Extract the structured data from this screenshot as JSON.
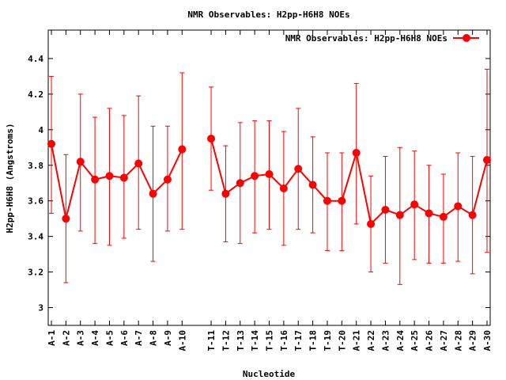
{
  "chart_data": {
    "type": "line",
    "title": "NMR Observables: H2pp-H6H8 NOEs",
    "xlabel": "Nucleotide",
    "ylabel": "H2pp-H6H8 (Angstroms)",
    "ylim": [
      2.9,
      4.56
    ],
    "yticks": [
      "3",
      "3.2",
      "3.4",
      "3.6",
      "3.8",
      "4",
      "4.2",
      "4.4"
    ],
    "ytick_values": [
      3.0,
      3.2,
      3.4,
      3.6,
      3.8,
      4.0,
      4.2,
      4.4
    ],
    "grid": false,
    "legend_position": "top-right",
    "color": "#ff0000",
    "categories": [
      "A-1",
      "A-2",
      "A-3",
      "A-4",
      "A-5",
      "A-6",
      "A-7",
      "A-8",
      "A-9",
      "A-10",
      "",
      "T-11",
      "T-12",
      "T-13",
      "T-14",
      "T-15",
      "T-16",
      "T-17",
      "T-18",
      "T-19",
      "T-20",
      "A-21",
      "A-22",
      "A-23",
      "A-24",
      "A-25",
      "A-26",
      "A-27",
      "A-28",
      "A-29",
      "A-30"
    ],
    "series": [
      {
        "name": "NMR Observables: H2pp-H6H8 NOEs",
        "values": [
          3.92,
          3.5,
          3.82,
          3.72,
          3.74,
          3.73,
          3.81,
          3.64,
          3.72,
          3.89,
          null,
          3.95,
          3.64,
          3.7,
          3.74,
          3.75,
          3.67,
          3.78,
          3.69,
          3.6,
          3.6,
          3.87,
          3.47,
          3.55,
          3.52,
          3.58,
          3.53,
          3.51,
          3.57,
          3.52,
          3.83
        ],
        "err_low": [
          3.53,
          3.14,
          3.43,
          3.36,
          3.35,
          3.39,
          3.44,
          3.26,
          3.43,
          3.44,
          null,
          3.66,
          3.37,
          3.36,
          3.42,
          3.44,
          3.35,
          3.44,
          3.42,
          3.32,
          3.32,
          3.47,
          3.2,
          3.25,
          3.13,
          3.27,
          3.25,
          3.25,
          3.26,
          3.19,
          3.31
        ],
        "err_high": [
          4.3,
          3.86,
          4.2,
          4.07,
          4.12,
          4.08,
          4.19,
          4.02,
          4.02,
          4.32,
          null,
          4.24,
          3.91,
          4.04,
          4.05,
          4.05,
          3.99,
          4.12,
          3.96,
          3.87,
          3.87,
          4.26,
          3.74,
          3.85,
          3.9,
          3.88,
          3.8,
          3.75,
          3.87,
          3.85,
          4.34
        ]
      }
    ]
  }
}
